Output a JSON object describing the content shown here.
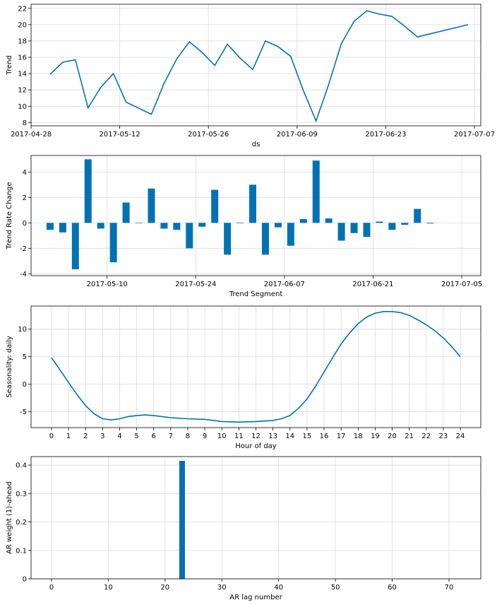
{
  "chart_data": [
    {
      "type": "line",
      "xlabel": "ds",
      "ylabel": "Trend",
      "x_type": "date",
      "xlim": [
        "2017-04-28",
        "2017-07-08"
      ],
      "ylim": [
        7.6,
        22.5
      ],
      "x_ticks": [
        "2017-04-28",
        "2017-05-12",
        "2017-05-26",
        "2017-06-09",
        "2017-06-23",
        "2017-07-07"
      ],
      "y_ticks": [
        8,
        10,
        12,
        14,
        16,
        18,
        20,
        22
      ],
      "grid": true,
      "color": "#0072B2",
      "series": [
        {
          "x": [
            "2017-05-01",
            "2017-05-03",
            "2017-05-05",
            "2017-05-07",
            "2017-05-09",
            "2017-05-11",
            "2017-05-13",
            "2017-05-17",
            "2017-05-19",
            "2017-05-21",
            "2017-05-23",
            "2017-05-25",
            "2017-05-27",
            "2017-05-29",
            "2017-05-31",
            "2017-06-02",
            "2017-06-04",
            "2017-06-06",
            "2017-06-08",
            "2017-06-10",
            "2017-06-12",
            "2017-06-14",
            "2017-06-16",
            "2017-06-18",
            "2017-06-20",
            "2017-06-22",
            "2017-06-24",
            "2017-06-26",
            "2017-06-28",
            "2017-07-06"
          ],
          "y": [
            13.9,
            15.4,
            15.7,
            9.8,
            12.3,
            14.0,
            10.5,
            9.0,
            12.8,
            15.8,
            17.9,
            16.6,
            15.0,
            17.6,
            15.9,
            14.5,
            18.0,
            17.3,
            16.1,
            11.9,
            8.2,
            12.7,
            17.7,
            20.4,
            21.7,
            21.3,
            21.0,
            19.8,
            18.5,
            20.0
          ]
        }
      ]
    },
    {
      "type": "bar",
      "xlabel": "Trend Segment",
      "ylabel": "Trend Rate Change",
      "x_type": "date",
      "xlim": [
        "2017-04-28",
        "2017-07-08"
      ],
      "ylim": [
        -4.15,
        5.3
      ],
      "x_ticks": [
        "2017-05-10",
        "2017-05-24",
        "2017-06-07",
        "2017-06-21",
        "2017-07-05"
      ],
      "y_ticks": [
        -4,
        -2,
        0,
        2,
        4
      ],
      "grid": true,
      "color": "#0072B2",
      "series": [
        {
          "x": [
            "2017-05-01",
            "2017-05-03",
            "2017-05-05",
            "2017-05-07",
            "2017-05-09",
            "2017-05-11",
            "2017-05-13",
            "2017-05-15",
            "2017-05-17",
            "2017-05-19",
            "2017-05-21",
            "2017-05-23",
            "2017-05-25",
            "2017-05-27",
            "2017-05-29",
            "2017-05-31",
            "2017-06-02",
            "2017-06-04",
            "2017-06-06",
            "2017-06-08",
            "2017-06-10",
            "2017-06-12",
            "2017-06-14",
            "2017-06-16",
            "2017-06-18",
            "2017-06-20",
            "2017-06-22",
            "2017-06-24",
            "2017-06-26",
            "2017-06-28",
            "2017-06-30"
          ],
          "y": [
            -0.55,
            -0.75,
            -3.65,
            5.0,
            -0.45,
            -3.1,
            1.6,
            0.0,
            2.7,
            -0.45,
            -0.55,
            -2.0,
            -0.3,
            2.6,
            -2.5,
            0.0,
            3.0,
            -2.5,
            -0.35,
            -1.8,
            0.3,
            4.9,
            0.35,
            -1.4,
            -0.8,
            -1.1,
            0.1,
            -0.55,
            -0.15,
            1.1,
            -0.05
          ]
        }
      ]
    },
    {
      "type": "line",
      "xlabel": "Hour of day",
      "ylabel": "Seasonality: daily",
      "xlim": [
        -1.2,
        25.2
      ],
      "ylim": [
        -7.9,
        14.2
      ],
      "x_ticks": [
        0,
        1,
        2,
        3,
        4,
        5,
        6,
        7,
        8,
        9,
        10,
        11,
        12,
        13,
        14,
        15,
        16,
        17,
        18,
        19,
        20,
        21,
        22,
        23,
        24
      ],
      "y_ticks": [
        -5,
        0,
        5,
        10
      ],
      "grid": true,
      "color": "#0072B2",
      "series": [
        {
          "x": [
            0,
            0.5,
            1,
            1.5,
            2,
            2.5,
            3,
            3.5,
            4,
            4.5,
            5,
            5.5,
            6,
            7,
            8,
            9,
            10,
            11,
            12,
            13,
            13.5,
            14,
            14.5,
            15,
            15.5,
            16,
            16.5,
            17,
            17.5,
            18,
            18.5,
            19,
            19.5,
            20,
            20.5,
            21,
            21.5,
            22,
            22.5,
            23,
            23.5,
            24
          ],
          "y": [
            4.8,
            2.6,
            0.3,
            -1.9,
            -3.9,
            -5.4,
            -6.3,
            -6.5,
            -6.3,
            -5.9,
            -5.7,
            -5.6,
            -5.7,
            -6.1,
            -6.3,
            -6.4,
            -6.8,
            -6.9,
            -6.8,
            -6.6,
            -6.3,
            -5.7,
            -4.4,
            -2.7,
            -0.4,
            2.2,
            4.8,
            7.3,
            9.3,
            11.0,
            12.2,
            12.9,
            13.2,
            13.2,
            13.0,
            12.5,
            11.7,
            10.8,
            9.7,
            8.4,
            6.8,
            5.0
          ]
        }
      ]
    },
    {
      "type": "bar",
      "xlabel": "AR lag number",
      "ylabel": "AR weight (1)-ahead",
      "xlim": [
        -3.6,
        75.6
      ],
      "ylim": [
        0,
        0.43
      ],
      "x_ticks": [
        0,
        10,
        20,
        30,
        40,
        50,
        60,
        70
      ],
      "y_ticks": [
        0.0,
        0.1,
        0.2,
        0.3,
        0.4
      ],
      "grid": true,
      "color": "#0072B2",
      "series": [
        {
          "x": [
            23
          ],
          "y": [
            0.415
          ]
        }
      ]
    }
  ]
}
